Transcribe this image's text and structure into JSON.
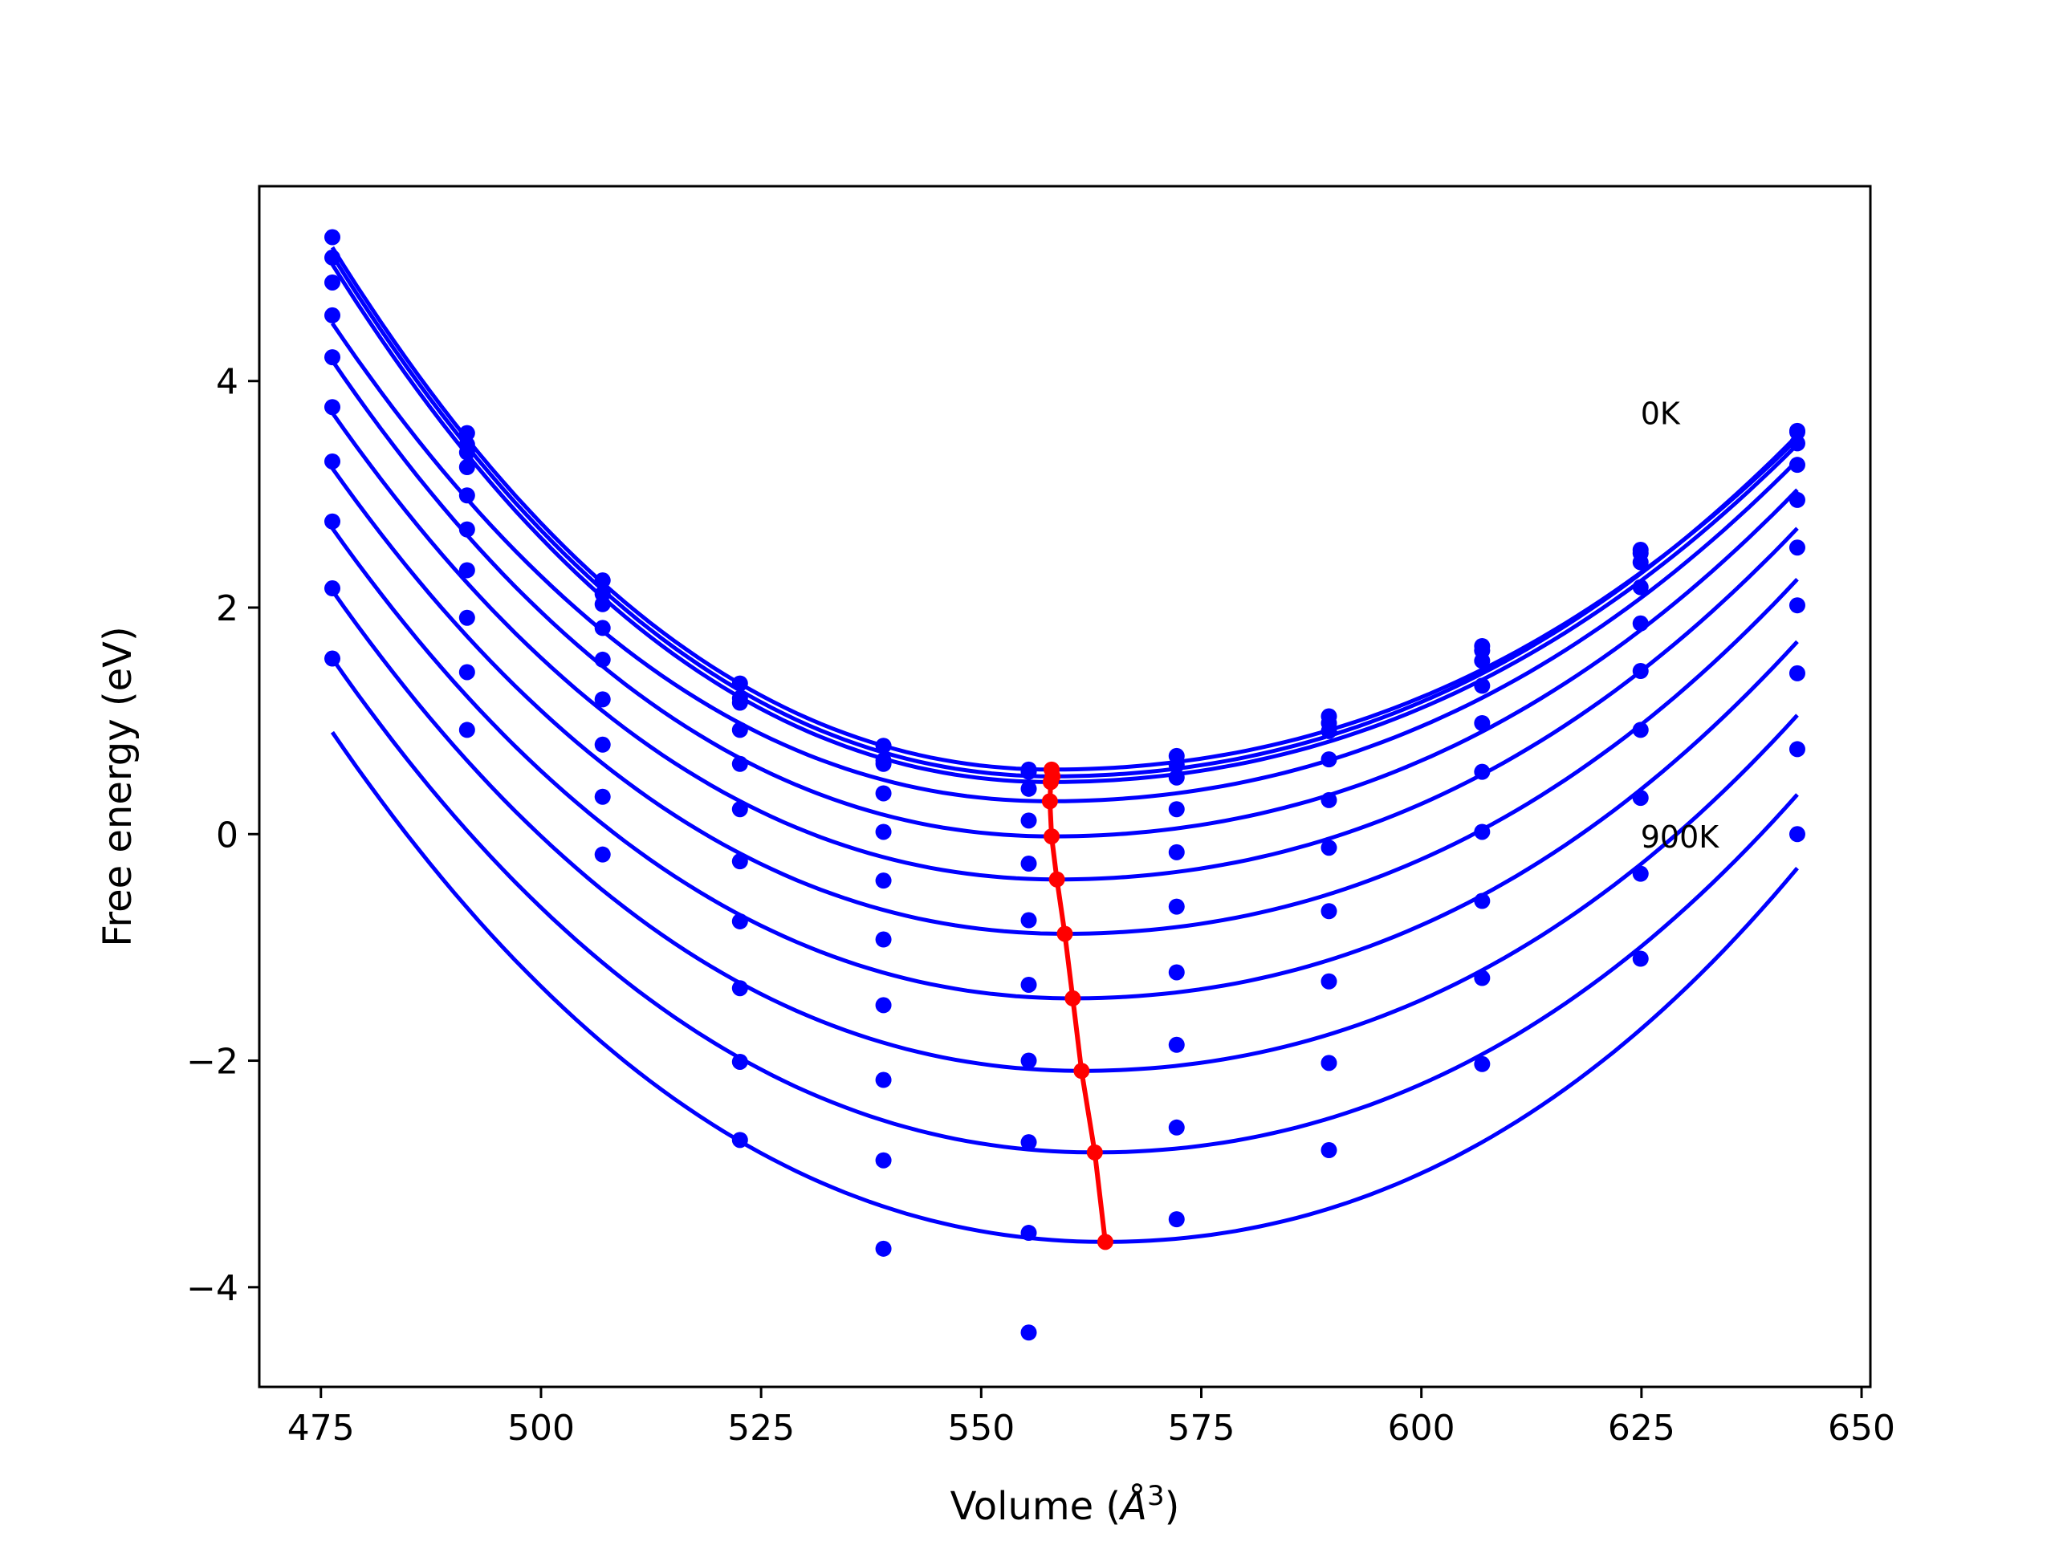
{
  "chart_data": {
    "type": "line",
    "title": "",
    "xlabel": "Volume (",
    "xlabel_symbol": "Å",
    "xlabel_power": "3",
    "xlabel_close": ")",
    "ylabel": "Free energy (eV)",
    "xlim": [
      468,
      651
    ],
    "ylim": [
      -4.88,
      5.72
    ],
    "xticks": [
      475,
      500,
      525,
      550,
      575,
      600,
      625,
      650
    ],
    "yticks": [
      -4,
      -2,
      0,
      2,
      4
    ],
    "xtick_labels": [
      "475",
      "500",
      "525",
      "550",
      "575",
      "600",
      "625",
      "650"
    ],
    "ytick_labels": [
      "−4",
      "−2",
      "0",
      "2",
      "4"
    ],
    "grid": false,
    "annotations": [
      {
        "text": "0K",
        "x": 624.9,
        "y": 3.62
      },
      {
        "text": "900K",
        "x": 624.9,
        "y": -0.12
      }
    ],
    "colors": {
      "fit": "#0000ff",
      "points": "#0000ff",
      "minima": "#ff0000"
    },
    "volumes": [
      476.3,
      491.6,
      507.0,
      522.6,
      538.9,
      555.4,
      572.2,
      589.5,
      606.9,
      624.9,
      642.7
    ],
    "series": [
      {
        "free_energy": [
          5.27,
          3.54,
          2.24,
          1.33,
          0.78,
          0.57,
          0.69,
          1.04,
          1.66,
          2.51,
          3.56
        ],
        "fit_min_volume": 558.0,
        "fit_min_energy": 0.57,
        "fit_range": [
          476.3,
          642.7
        ],
        "fit_ends": [
          5.18,
          3.49
        ]
      },
      {
        "free_energy": [
          5.09,
          3.44,
          2.12,
          1.2,
          0.65,
          0.55,
          0.61,
          0.98,
          1.62,
          2.48,
          3.55
        ],
        "fit_min_volume": 558.1,
        "fit_min_energy": 0.51,
        "fit_range": [
          476.3,
          642.7
        ],
        "fit_ends": [
          5.11,
          3.52
        ]
      },
      {
        "free_energy": [
          4.87,
          3.37,
          2.03,
          1.16,
          0.62,
          0.4,
          0.5,
          0.91,
          1.53,
          2.4,
          3.45
        ],
        "fit_min_volume": 557.9,
        "fit_min_energy": 0.46,
        "fit_range": [
          476.3,
          642.7
        ],
        "fit_ends": [
          5.03,
          3.44
        ]
      },
      {
        "free_energy": [
          4.58,
          3.24,
          1.82,
          0.92,
          0.36,
          0.12,
          0.22,
          0.66,
          1.31,
          2.18,
          3.26
        ],
        "fit_min_volume": 557.8,
        "fit_min_energy": 0.29,
        "fit_range": [
          476.3,
          642.7
        ],
        "fit_ends": [
          4.51,
          3.3
        ]
      },
      {
        "free_energy": [
          4.21,
          2.99,
          1.54,
          0.62,
          0.02,
          -0.26,
          -0.16,
          0.3,
          0.98,
          1.86,
          2.95
        ],
        "fit_min_volume": 558.0,
        "fit_min_energy": -0.02,
        "fit_range": [
          476.3,
          642.7
        ],
        "fit_ends": [
          4.18,
          3.04
        ]
      },
      {
        "free_energy": [
          3.77,
          2.69,
          1.19,
          0.22,
          -0.41,
          -0.76,
          -0.64,
          -0.12,
          0.55,
          1.44,
          2.53
        ],
        "fit_min_volume": 558.6,
        "fit_min_energy": -0.4,
        "fit_range": [
          476.3,
          642.7
        ],
        "fit_ends": [
          3.72,
          2.7
        ]
      },
      {
        "free_energy": [
          3.29,
          2.33,
          0.79,
          -0.24,
          -0.93,
          -1.33,
          -1.22,
          -0.68,
          0.02,
          0.92,
          2.02
        ],
        "fit_min_volume": 559.5,
        "fit_min_energy": -0.88,
        "fit_range": [
          476.3,
          642.7
        ],
        "fit_ends": [
          3.23,
          2.25
        ]
      },
      {
        "free_energy": [
          2.76,
          1.91,
          0.33,
          -0.77,
          -1.51,
          -2.0,
          -1.86,
          -1.3,
          -0.59,
          0.32,
          1.42
        ],
        "fit_min_volume": 560.4,
        "fit_min_energy": -1.45,
        "fit_range": [
          476.3,
          642.7
        ],
        "fit_ends": [
          2.7,
          1.7
        ]
      },
      {
        "free_energy": [
          2.17,
          1.43,
          -0.18,
          -1.36,
          -2.17,
          -2.72,
          -2.59,
          -2.02,
          -1.27,
          -0.35,
          0.75
        ],
        "fit_min_volume": 561.4,
        "fit_min_energy": -2.09,
        "fit_range": [
          476.3,
          642.7
        ],
        "fit_ends": [
          2.15,
          1.05
        ]
      },
      {
        "free_energy": [
          1.55,
          0.92,
          null,
          -2.01,
          -2.88,
          -3.52,
          -3.4,
          -2.79,
          -2.03,
          -1.1,
          0.0
        ],
        "fit_min_volume": 562.9,
        "fit_min_energy": -2.81,
        "fit_range": [
          476.3,
          642.7
        ],
        "fit_ends": [
          1.55,
          0.35
        ]
      },
      {
        "free_energy": [
          null,
          null,
          null,
          -2.7,
          -3.66,
          -4.4,
          null,
          null,
          null,
          null,
          null
        ],
        "fit_min_volume": 564.1,
        "fit_min_energy": -3.6,
        "fit_range": [
          476.3,
          642.7
        ],
        "fit_ends": [
          0.9,
          -0.3
        ]
      }
    ],
    "minima_line": {
      "x": [
        558.0,
        558.1,
        557.9,
        557.8,
        558.0,
        558.6,
        559.5,
        560.4,
        561.4,
        562.9,
        564.1
      ],
      "y": [
        0.57,
        0.51,
        0.46,
        0.29,
        -0.02,
        -0.4,
        -0.88,
        -1.45,
        -2.09,
        -2.81,
        -3.6
      ]
    }
  }
}
